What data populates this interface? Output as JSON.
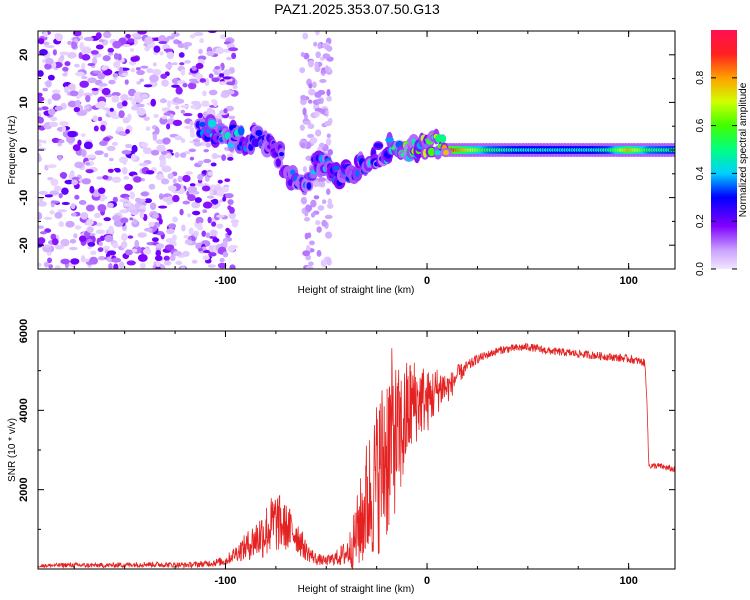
{
  "title": "PAZ1.2025.353.07.50.G13",
  "chart_data": [
    {
      "type": "heatmap",
      "name": "spectrogram",
      "xlabel": "Height of straight line (km)",
      "ylabel": "Frequency (Hz)",
      "xlim": [
        -193,
        123
      ],
      "ylim": [
        -25,
        25
      ],
      "xticks": [
        -100,
        0,
        100
      ],
      "yticks": [
        -20,
        -10,
        0,
        10,
        20
      ],
      "ridge": {
        "x": [
          -113,
          -105,
          -98,
          -90,
          -82,
          -75,
          -68,
          -62,
          -55,
          -48,
          -42,
          -36,
          -30,
          -25,
          -20,
          -15,
          -10,
          -5,
          0,
          5,
          10
        ],
        "frequency": [
          5,
          4,
          3,
          2,
          3,
          0,
          -5,
          -8,
          -3,
          -4,
          -6,
          -4,
          -2,
          -1,
          0,
          1,
          0,
          0,
          1,
          1,
          0
        ],
        "amplitude": [
          0.35,
          0.45,
          0.4,
          0.35,
          0.3,
          0.3,
          0.3,
          0.3,
          0.35,
          0.35,
          0.3,
          0.3,
          0.35,
          0.4,
          0.45,
          0.5,
          0.55,
          0.6,
          0.65,
          0.7,
          0.75
        ]
      },
      "tone": {
        "frequency": 0,
        "x": [
          10,
          20,
          30,
          40,
          50,
          60,
          70,
          80,
          90,
          100,
          110,
          120
        ],
        "amplitude": [
          0.95,
          0.75,
          0.55,
          0.48,
          0.45,
          0.45,
          0.45,
          0.45,
          0.5,
          0.8,
          0.55,
          0.5
        ]
      },
      "noise_region": {
        "x_from": -193,
        "x_to": -100,
        "ylim": [
          -25,
          25
        ]
      },
      "colorbar": {
        "label": "Normalized spectral amplitude",
        "range": [
          0,
          1
        ],
        "ticks": [
          0.0,
          0.2,
          0.4,
          0.6,
          0.8
        ],
        "tick_labels": [
          "0.0",
          "0.2",
          "0.4",
          "0.6",
          "0.8"
        ]
      }
    },
    {
      "type": "line",
      "name": "snr",
      "xlabel": "Height of straight line (km)",
      "ylabel": "SNR (10 * v/v)",
      "xlim": [
        -193,
        123
      ],
      "ylim": [
        0,
        6000
      ],
      "xticks": [
        -100,
        0,
        100
      ],
      "yticks": [
        2000,
        4000,
        6000
      ],
      "color": "#e52222",
      "series": [
        {
          "name": "SNR",
          "x": [
            -193,
            -180,
            -160,
            -140,
            -120,
            -110,
            -100,
            -95,
            -90,
            -85,
            -80,
            -75,
            -70,
            -65,
            -60,
            -55,
            -50,
            -45,
            -40,
            -37,
            -35,
            -32,
            -30,
            -27,
            -25,
            -22,
            -20,
            -17,
            -15,
            -12,
            -10,
            -7,
            -5,
            -2,
            0,
            3,
            5,
            8,
            10,
            13,
            15,
            18,
            20,
            25,
            30,
            35,
            40,
            50,
            60,
            70,
            80,
            90,
            100,
            108,
            109,
            110,
            115,
            123
          ],
          "y": [
            80,
            100,
            90,
            120,
            100,
            130,
            200,
            400,
            550,
            750,
            950,
            1200,
            1050,
            900,
            450,
            250,
            200,
            280,
            400,
            600,
            900,
            1300,
            1700,
            2000,
            2300,
            2700,
            3000,
            3400,
            3300,
            3500,
            3900,
            4200,
            4200,
            4300,
            4200,
            4400,
            4500,
            4600,
            4550,
            4700,
            4900,
            5000,
            5100,
            5300,
            5400,
            5500,
            5550,
            5600,
            5500,
            5450,
            5400,
            5350,
            5300,
            5200,
            4400,
            2600,
            2600,
            2500
          ],
          "spread": [
            40,
            60,
            60,
            70,
            70,
            80,
            120,
            200,
            350,
            500,
            700,
            800,
            600,
            500,
            250,
            150,
            120,
            200,
            350,
            600,
            900,
            1300,
            1600,
            1800,
            2000,
            2200,
            2400,
            2200,
            1800,
            1600,
            1400,
            1200,
            1000,
            900,
            800,
            700,
            600,
            500,
            400,
            300,
            250,
            200,
            150,
            120,
            100,
            100,
            100,
            100,
            100,
            100,
            100,
            100,
            100,
            100,
            100,
            80,
            80,
            80
          ]
        }
      ]
    }
  ]
}
